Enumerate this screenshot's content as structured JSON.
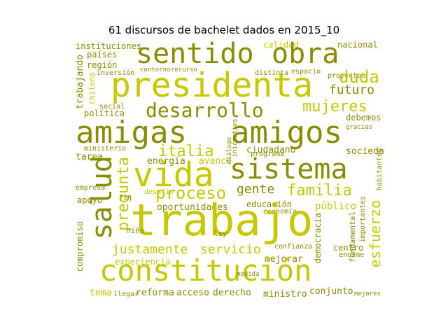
{
  "title": "61 discursos de bachelet dados en 2015_10",
  "colors": {
    "dark": "#8c8c00",
    "mid": "#a3a300",
    "light": "#c8c800",
    "pale": "#d4d43a"
  },
  "words": {
    "trabajo": "trabajo",
    "constitucion": "constitución",
    "amigas": "amigas",
    "amigos": "amigos",
    "sentido": "sentido",
    "obra": "obra",
    "presidenta": "presidenta",
    "sistema": "sistema",
    "vida": "vida",
    "salud": "salud",
    "desarrollo": "desarrollo",
    "mujeres": "mujeres",
    "duda": "duda",
    "futuro": "futuro",
    "italia": "italia",
    "pregunta": "pregunta",
    "familia": "familia",
    "proceso": "proceso",
    "gente": "gente",
    "esfuerzo": "esfuerzo",
    "justamente": "justamente",
    "servicio": "servicio",
    "oportunidades": "oportunidades",
    "educacion": "educación",
    "publico": "público",
    "experiencia": "experiencia",
    "mejorar": "mejorar",
    "reforma": "reforma",
    "acceso": "acceso",
    "derecho": "derecho",
    "ministro": "ministro",
    "conjunto": "conjunto",
    "tema": "tema",
    "politica": "política",
    "ciudadano": "ciudadano",
    "sociedad": "sociedad",
    "energia": "energía",
    "avance": "avance",
    "tarea": "tarea",
    "instituciones": "instituciones",
    "paises": "países",
    "region": "región",
    "trabajando": "trabajando",
    "calidad": "calidad",
    "nacional": "nacional",
    "centro": "centro",
    "democracia": "democracia",
    "compromiso": "compromiso",
    "economia": "economía",
    "programa": "programa",
    "debemos": "debemos",
    "apoyo": "apoyo",
    "importantes": "importantes",
    "fundamental": "fundamental",
    "confianza": "confianza",
    "chilena": "chilena",
    "ministerio": "ministerio",
    "social": "social",
    "inversion": "inversión",
    "desafio": "desafío",
    "habitantes": "habitantes",
    "espacio": "espacio",
    "distinta": "distinta",
    "proyectos": "proyectos",
    "contorno": "contorno",
    "recurso": "recurso",
    "enorme": "enorme",
    "llegar": "llegar",
    "mejores": "mejores",
    "iniciativa": "iniciativa",
    "dialogo": "diálogo",
    "empresa": "empresa",
    "nino": "niño",
    "medida": "medida",
    "fin": "fin",
    "gracias": "gracias",
    "ley": "ley"
  }
}
